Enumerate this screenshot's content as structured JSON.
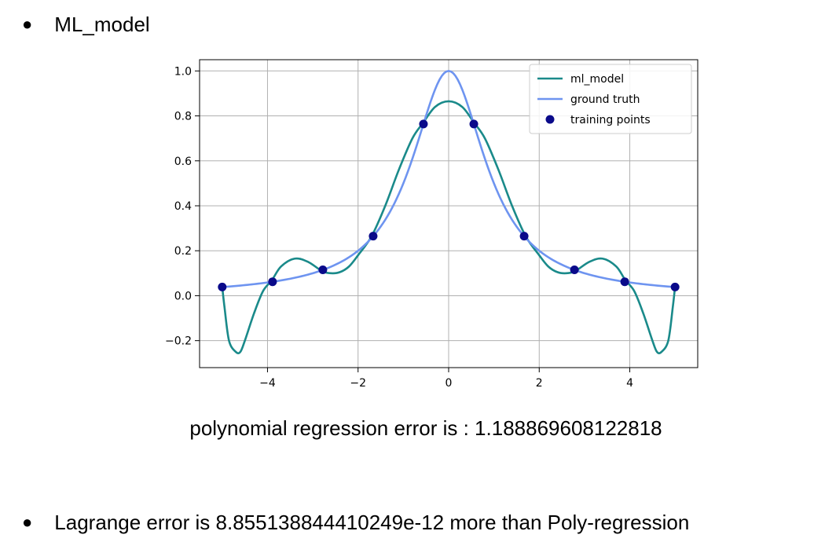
{
  "header": {
    "bullet": "●",
    "title": "ML_model"
  },
  "caption": "polynomial regression error is : 1.188869608122818",
  "footer": {
    "bullet": "●",
    "text": "Lagrange error is 8.855138844410249e-12 more than Poly-regression"
  },
  "colors": {
    "ml_model": "#1a8a8a",
    "ground_truth": "#6e94f0",
    "points": "#0a0a8a",
    "grid": "#b0b0b0"
  },
  "chart_data": {
    "type": "line",
    "title": "",
    "xlabel": "",
    "ylabel": "",
    "xlim": [
      -5.5,
      5.5
    ],
    "ylim": [
      -0.32,
      1.05
    ],
    "grid": true,
    "legend_position": "top-right",
    "xticks": [
      -4,
      -2,
      0,
      2,
      4
    ],
    "xtick_labels": [
      "−4",
      "−2",
      "0",
      "2",
      "4"
    ],
    "yticks": [
      -0.2,
      0.0,
      0.2,
      0.4,
      0.6,
      0.8,
      1.0
    ],
    "ytick_labels": [
      "−0.2",
      "0.0",
      "0.2",
      "0.4",
      "0.6",
      "0.8",
      "1.0"
    ],
    "series": [
      {
        "name": "ml_model",
        "x": [
          -5,
          -4.95,
          -4.85,
          -4.7,
          -4.6,
          -4.5,
          -4.3,
          -4.1,
          -3.9,
          -3.7,
          -3.4,
          -3.1,
          -2.8,
          -2.6,
          -2.4,
          -2.2,
          -2.0,
          -1.7,
          -1.4,
          -1.1,
          -0.8,
          -0.56,
          -0.3,
          0,
          0.3,
          0.56,
          0.8,
          1.1,
          1.4,
          1.7,
          2.0,
          2.2,
          2.4,
          2.6,
          2.8,
          3.1,
          3.4,
          3.7,
          3.9,
          4.1,
          4.3,
          4.5,
          4.6,
          4.7,
          4.85,
          4.95,
          5
        ],
        "y": [
          0.04,
          -0.05,
          -0.2,
          -0.25,
          -0.25,
          -0.2,
          -0.08,
          0.02,
          0.07,
          0.13,
          0.165,
          0.15,
          0.11,
          0.1,
          0.105,
          0.13,
          0.18,
          0.265,
          0.4,
          0.56,
          0.7,
          0.77,
          0.84,
          0.865,
          0.84,
          0.77,
          0.7,
          0.56,
          0.4,
          0.265,
          0.18,
          0.13,
          0.105,
          0.1,
          0.11,
          0.15,
          0.165,
          0.13,
          0.07,
          0.02,
          -0.08,
          -0.2,
          -0.25,
          -0.25,
          -0.2,
          -0.05,
          0.04
        ]
      },
      {
        "name": "ground truth",
        "function": "1/(1+x^2)",
        "x_range": [
          -5,
          5
        ]
      }
    ],
    "scatter": {
      "name": "training points",
      "x": [
        -5,
        -3.889,
        -2.778,
        -1.667,
        -0.556,
        0.556,
        1.667,
        2.778,
        3.889,
        5
      ],
      "y": [
        0.0385,
        0.062,
        0.115,
        0.265,
        0.764,
        0.764,
        0.265,
        0.115,
        0.062,
        0.0385
      ]
    },
    "legend": [
      {
        "label": "ml_model",
        "kind": "line",
        "series": "ml_model"
      },
      {
        "label": "ground truth",
        "kind": "line",
        "series": "ground_truth"
      },
      {
        "label": "training points",
        "kind": "marker",
        "series": "points"
      }
    ]
  }
}
